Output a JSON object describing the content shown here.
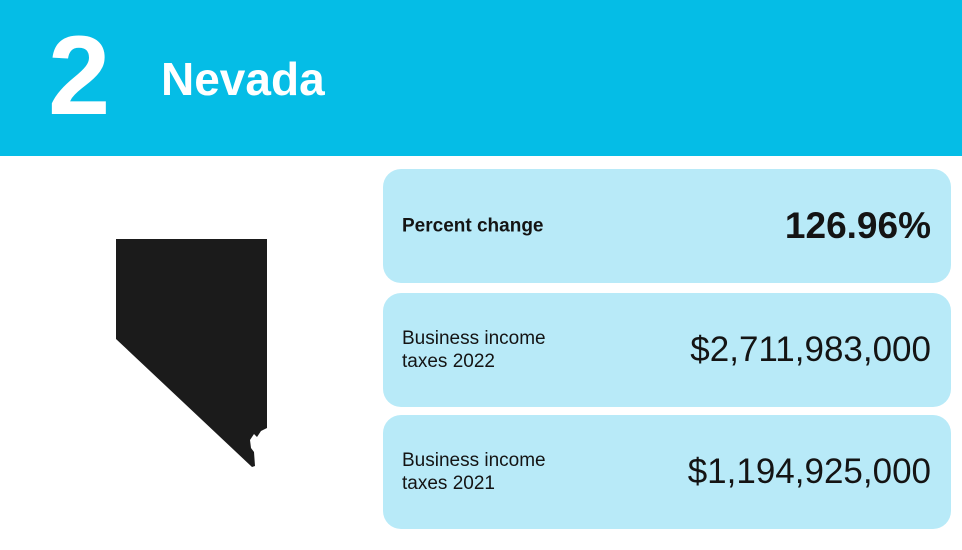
{
  "header": {
    "rank": "2",
    "state": "Nevada",
    "background_color": "#05bde6"
  },
  "map": {
    "icon": "nevada-state-silhouette-icon",
    "fill_color": "#1b1b1b"
  },
  "stats": [
    {
      "label": "Percent change",
      "value": "126.96%"
    },
    {
      "label": "Business income taxes 2022",
      "value": "$2,711,983,000"
    },
    {
      "label": "Business income taxes 2021",
      "value": "$1,194,925,000"
    }
  ],
  "card_color": "#b8eaf8"
}
